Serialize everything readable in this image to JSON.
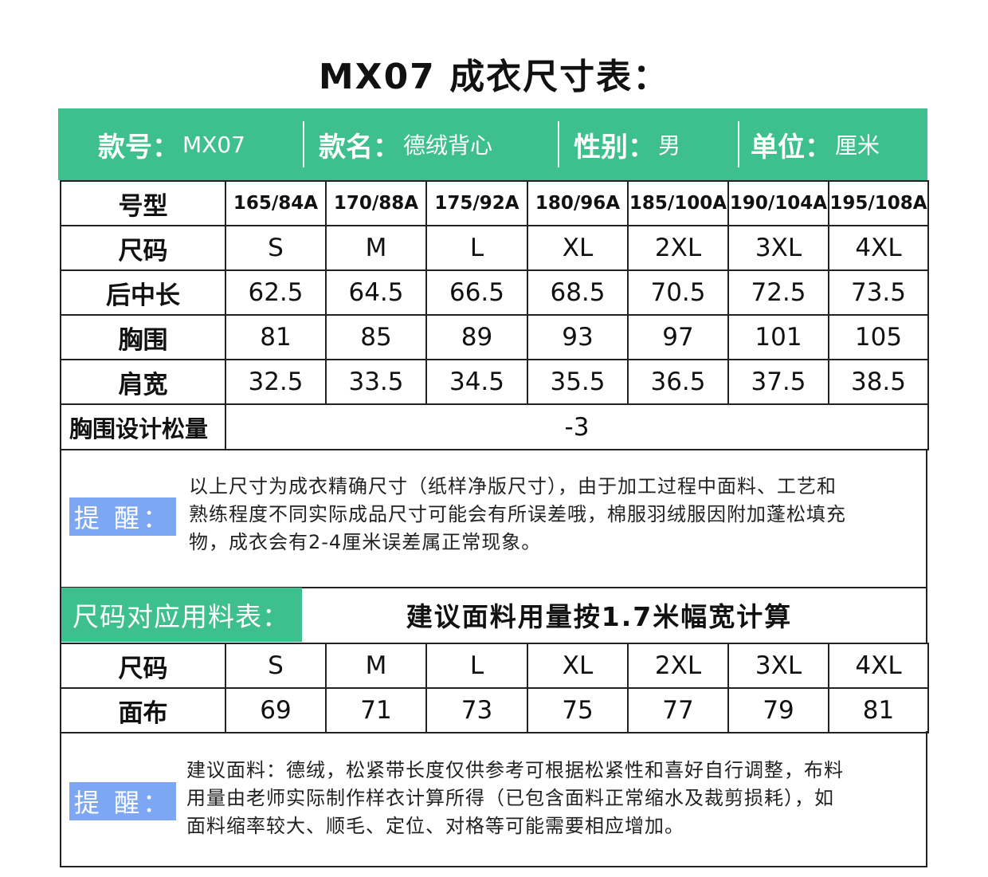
{
  "title": "MX07 成衣尺寸表：",
  "header": {
    "style_no_label": "款号：",
    "style_no_value": "MX07",
    "style_name_label": "款名：",
    "style_name_value": "德绒背心",
    "gender_label": "性别：",
    "gender_value": "男",
    "unit_label": "单位：",
    "unit_value": "厘米"
  },
  "size_table": {
    "rows": [
      {
        "label": "号型",
        "cells": [
          "165/84A",
          "170/88A",
          "175/92A",
          "180/96A",
          "185/100A",
          "190/104A",
          "195/108A"
        ]
      },
      {
        "label": "尺码",
        "cells": [
          "S",
          "M",
          "L",
          "XL",
          "2XL",
          "3XL",
          "4XL"
        ]
      },
      {
        "label": "后中长",
        "cells": [
          "62.5",
          "64.5",
          "66.5",
          "68.5",
          "70.5",
          "72.5",
          "73.5"
        ]
      },
      {
        "label": "胸围",
        "cells": [
          "81",
          "85",
          "89",
          "93",
          "97",
          "101",
          "105"
        ]
      },
      {
        "label": "肩宽",
        "cells": [
          "32.5",
          "33.5",
          "34.5",
          "35.5",
          "36.5",
          "37.5",
          "38.5"
        ]
      }
    ],
    "ease_label": "胸围设计松量",
    "ease_value": "-3"
  },
  "note1": {
    "badge": "提 醒：",
    "lines": [
      "以上尺寸为成衣精确尺寸（纸样净版尺寸），由于加工过程中面料、工艺和",
      "熟练程度不同实际成品尺寸可能会有所误差哦，棉服羽绒服因附加蓬松填充",
      "物，成衣会有2-4厘米误差属正常现象。"
    ]
  },
  "fabric": {
    "tag": "尺码对应用料表：",
    "hint": "建议面料用量按1.7米幅宽计算",
    "rows": [
      {
        "label": "尺码",
        "cells": [
          "S",
          "M",
          "L",
          "XL",
          "2XL",
          "3XL",
          "4XL"
        ]
      },
      {
        "label": "面布",
        "cells": [
          "69",
          "71",
          "73",
          "75",
          "77",
          "79",
          "81"
        ]
      }
    ]
  },
  "note2": {
    "badge": "提 醒：",
    "lines": [
      "建议面料：德绒，松紧带长度仅供参考可根据松紧性和喜好自行调整，布料",
      "用量由老师实际制作样衣计算所得（已包含面料正常缩水及裁剪损耗），如",
      "面料缩率较大、顺毛、定位、对格等可能需要相应增加。"
    ]
  },
  "colors": {
    "accent_green": "#3dbf8e",
    "badge_blue": "#7da7f2"
  }
}
